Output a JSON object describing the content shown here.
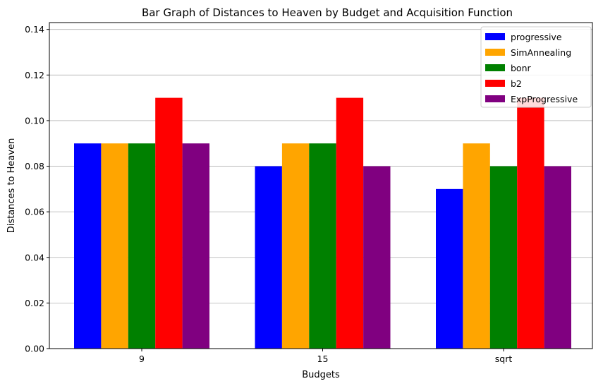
{
  "chart_data": {
    "type": "bar",
    "title": "Bar Graph of Distances to Heaven by Budget and Acquisition Function",
    "xlabel": "Budgets",
    "ylabel": "Distances to Heaven",
    "categories": [
      "9",
      "15",
      "sqrt"
    ],
    "ylim": [
      0,
      0.143
    ],
    "yticks": [
      "0.00",
      "0.02",
      "0.04",
      "0.06",
      "0.08",
      "0.10",
      "0.12",
      "0.14"
    ],
    "grid": "y",
    "legend_position": "top-right",
    "series": [
      {
        "name": "progressive",
        "color": "#0000ff",
        "values": [
          0.09,
          0.08,
          0.07
        ]
      },
      {
        "name": "SimAnnealing",
        "color": "#ffa500",
        "values": [
          0.09,
          0.09,
          0.09
        ]
      },
      {
        "name": "bonr",
        "color": "#008000",
        "values": [
          0.09,
          0.09,
          0.08
        ]
      },
      {
        "name": "b2",
        "color": "#ff0000",
        "values": [
          0.11,
          0.11,
          0.11
        ]
      },
      {
        "name": "ExpProgressive",
        "color": "#800080",
        "values": [
          0.09,
          0.08,
          0.08
        ]
      }
    ]
  }
}
